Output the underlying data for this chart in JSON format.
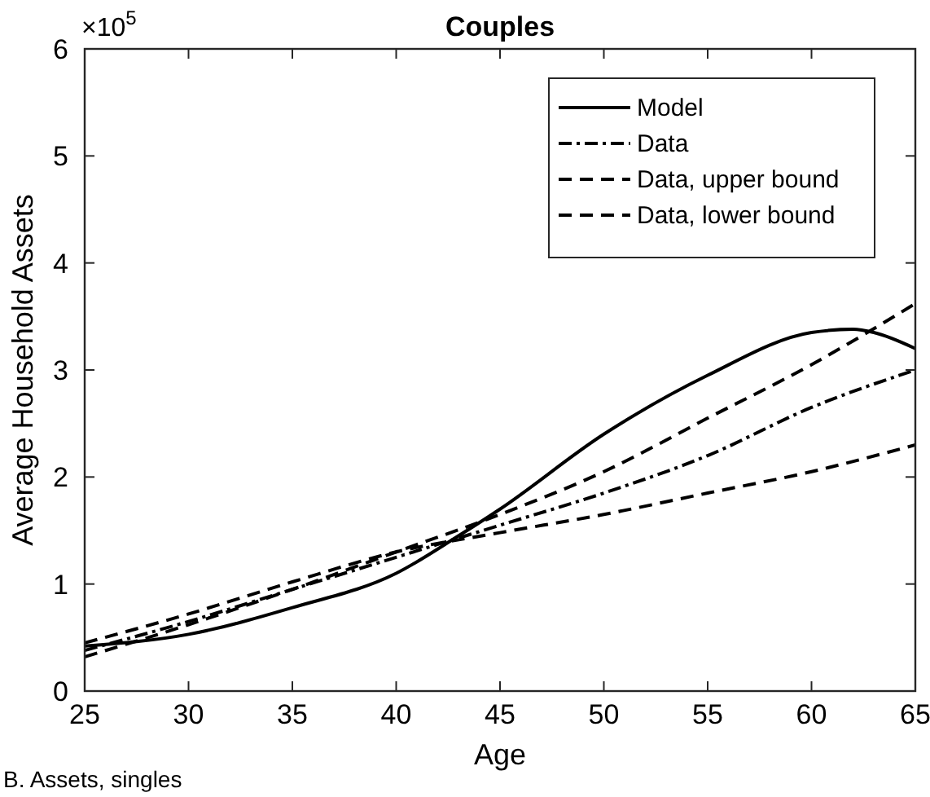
{
  "chart_data": {
    "type": "line",
    "title": "Couples",
    "xlabel": "Age",
    "ylabel": "Average Household Assets",
    "x": [
      25,
      30,
      35,
      40,
      43,
      45,
      50,
      55,
      60,
      62,
      63,
      65
    ],
    "xlim": [
      25,
      65
    ],
    "xticks": [
      25,
      30,
      35,
      40,
      45,
      50,
      55,
      60,
      65
    ],
    "ylim": [
      0,
      6
    ],
    "yticks": [
      0,
      1,
      2,
      3,
      4,
      5,
      6
    ],
    "legend": "top right",
    "grid": false,
    "series": [
      {
        "name": "Model",
        "color": "#000000",
        "line_style": "solid",
        "values": [
          0.42,
          0.53,
          0.78,
          1.1,
          1.45,
          1.7,
          2.4,
          2.95,
          3.35,
          3.38,
          3.35,
          3.2
        ]
      },
      {
        "name": "Data",
        "color": "#000000",
        "line_style": "dashdot",
        "x": [
          25,
          30,
          35,
          40,
          45,
          50,
          55,
          60,
          65
        ],
        "values": [
          0.38,
          0.65,
          0.95,
          1.25,
          1.55,
          1.85,
          2.2,
          2.65,
          3.0
        ]
      },
      {
        "name": "Data, upper bound",
        "color": "#000000",
        "line_style": "dashed",
        "x": [
          25,
          30,
          35,
          40,
          45,
          50,
          55,
          60,
          65
        ],
        "values": [
          0.32,
          0.62,
          0.95,
          1.3,
          1.65,
          2.05,
          2.55,
          3.05,
          3.62
        ]
      },
      {
        "name": "Data, lower bound",
        "color": "#000000",
        "line_style": "dashed",
        "x": [
          25,
          30,
          35,
          40,
          45,
          50,
          55,
          60,
          65
        ],
        "values": [
          0.45,
          0.72,
          1.02,
          1.3,
          1.48,
          1.65,
          1.85,
          2.05,
          2.3
        ]
      }
    ],
    "annotations": [
      "×10$^{5}$",
      "B. Assets, singles"
    ]
  }
}
